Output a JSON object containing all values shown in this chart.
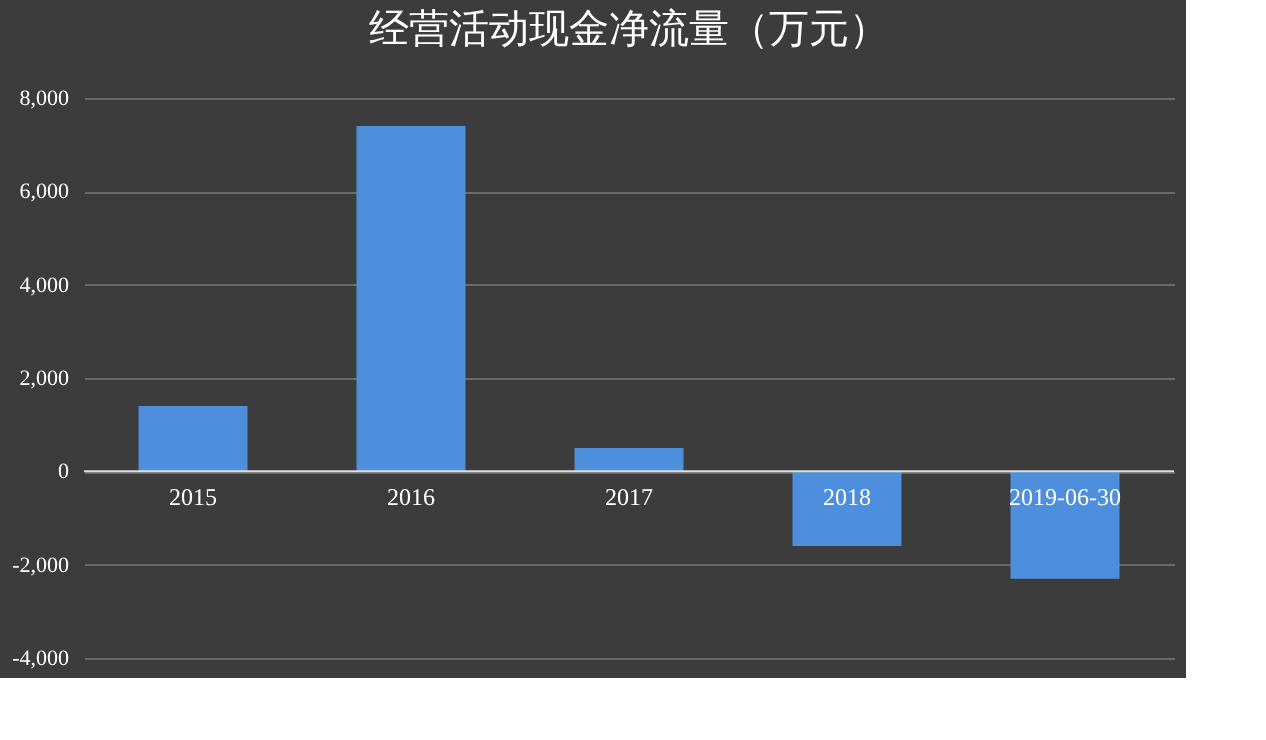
{
  "chart_data": {
    "type": "bar",
    "title": "经营活动现金净流量（万元）",
    "categories": [
      "2015",
      "2016",
      "2017",
      "2018",
      "2019-06-30"
    ],
    "values": [
      1400,
      7400,
      500,
      -1600,
      -2300
    ],
    "color": "#4d8fdc",
    "ylim": [
      -4000,
      8000
    ],
    "yticks": [
      {
        "value": -4000,
        "label": "-4,000"
      },
      {
        "value": -2000,
        "label": "-2,000"
      },
      {
        "value": 0,
        "label": "0"
      },
      {
        "value": 2000,
        "label": "2,000"
      },
      {
        "value": 4000,
        "label": "4,000"
      },
      {
        "value": 6000,
        "label": "6,000"
      },
      {
        "value": 8000,
        "label": "8,000"
      }
    ],
    "grid": "y"
  }
}
